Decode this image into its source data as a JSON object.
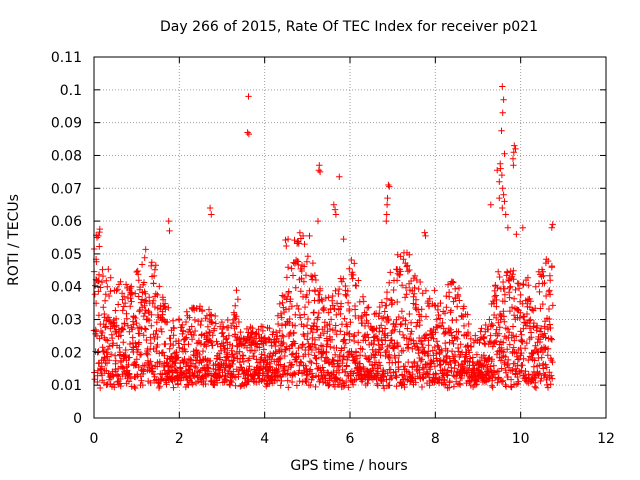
{
  "chart_data": {
    "type": "scatter",
    "title": "Day 266 of 2015, Rate Of TEC Index for receiver p021",
    "xlabel": "GPS time / hours",
    "ylabel": "ROTI / TECUs",
    "xlim": [
      0,
      12
    ],
    "ylim": [
      0,
      0.11
    ],
    "x_ticks": [
      0,
      2,
      4,
      6,
      8,
      10,
      12
    ],
    "x_tick_labels": [
      "0",
      "2",
      "4",
      "6",
      "8",
      "10",
      "12"
    ],
    "y_ticks": [
      0,
      0.01,
      0.02,
      0.03,
      0.04,
      0.05,
      0.06,
      0.07,
      0.08,
      0.09,
      0.1,
      0.11
    ],
    "y_tick_labels": [
      "0",
      "0.01",
      "0.02",
      "0.03",
      "0.04",
      "0.05",
      "0.06",
      "0.07",
      "0.08",
      "0.09",
      "0.1",
      "0.11"
    ],
    "grid": true,
    "marker": "+",
    "series_color": "#ff0000",
    "series": [
      {
        "name": "ROTI p021",
        "x_range": [
          0,
          10.75
        ],
        "y_typical_range": [
          0.005,
          0.045
        ],
        "outliers": [
          [
            3.62,
            0.098
          ],
          [
            3.6,
            0.087
          ],
          [
            3.63,
            0.0865
          ],
          [
            1.75,
            0.06
          ],
          [
            1.77,
            0.057
          ],
          [
            2.72,
            0.064
          ],
          [
            2.75,
            0.062
          ],
          [
            5.28,
            0.077
          ],
          [
            5.27,
            0.0755
          ],
          [
            5.3,
            0.075
          ],
          [
            5.75,
            0.0735
          ],
          [
            5.62,
            0.065
          ],
          [
            5.65,
            0.0635
          ],
          [
            5.67,
            0.062
          ],
          [
            5.25,
            0.06
          ],
          [
            6.9,
            0.071
          ],
          [
            6.92,
            0.0705
          ],
          [
            6.88,
            0.067
          ],
          [
            6.87,
            0.065
          ],
          [
            6.86,
            0.062
          ],
          [
            6.85,
            0.06
          ],
          [
            7.75,
            0.0565
          ],
          [
            7.77,
            0.0555
          ],
          [
            9.57,
            0.101
          ],
          [
            9.6,
            0.097
          ],
          [
            9.58,
            0.093
          ],
          [
            9.55,
            0.0875
          ],
          [
            9.62,
            0.0805
          ],
          [
            9.45,
            0.0755
          ],
          [
            9.52,
            0.0775
          ],
          [
            9.53,
            0.076
          ],
          [
            9.56,
            0.074
          ],
          [
            9.5,
            0.072
          ],
          [
            9.85,
            0.083
          ],
          [
            9.88,
            0.082
          ],
          [
            9.84,
            0.081
          ],
          [
            9.82,
            0.079
          ],
          [
            9.83,
            0.077
          ],
          [
            9.58,
            0.07
          ],
          [
            9.6,
            0.068
          ],
          [
            9.62,
            0.066
          ],
          [
            9.57,
            0.064
          ],
          [
            9.65,
            0.062
          ],
          [
            9.5,
            0.067
          ],
          [
            9.3,
            0.065
          ],
          [
            9.7,
            0.058
          ],
          [
            9.9,
            0.056
          ],
          [
            10.05,
            0.058
          ],
          [
            10.75,
            0.059
          ],
          [
            10.73,
            0.058
          ],
          [
            0.1,
            0.0555
          ],
          [
            0.07,
            0.055
          ],
          [
            4.9,
            0.0555
          ],
          [
            5.05,
            0.0555
          ],
          [
            5.85,
            0.0545
          ]
        ]
      }
    ]
  }
}
